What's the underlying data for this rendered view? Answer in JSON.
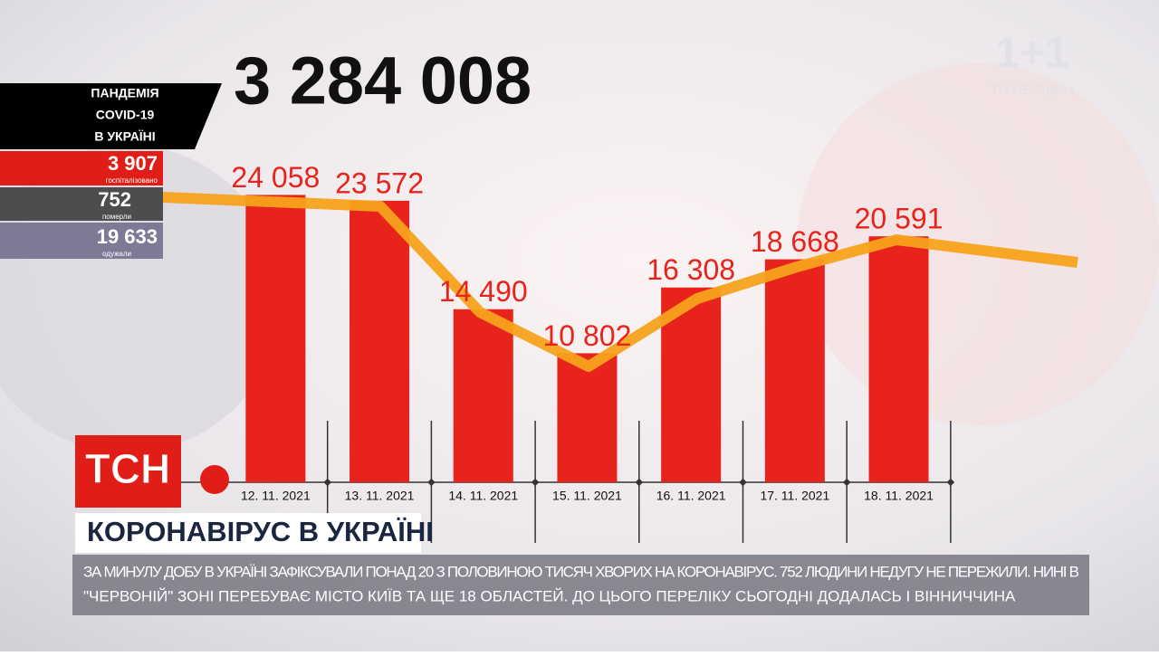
{
  "chart_data": {
    "type": "bar",
    "categories": [
      "12. 11. 2021",
      "13. 11. 2021",
      "14. 11. 2021",
      "15. 11. 2021",
      "16. 11. 2021",
      "17. 11. 2021",
      "18. 11. 2021"
    ],
    "values": [
      24058,
      23572,
      14490,
      10802,
      16308,
      18668,
      20591
    ],
    "value_labels": [
      "24 058",
      "23 572",
      "14 490",
      "10 802",
      "16 308",
      "18 668",
      "20 591"
    ],
    "color": "#e8231b",
    "ylim": [
      0,
      30000
    ]
  },
  "total": "3 284 008",
  "panel": {
    "title": [
      "ПАНДЕМІЯ",
      "COVID-19",
      "В УКРАЇНІ"
    ],
    "stats": [
      {
        "value": "3 907",
        "label": "госпіталізовано"
      },
      {
        "value": "752",
        "label": "померли"
      },
      {
        "value": "19 633",
        "label": "одужали"
      }
    ]
  },
  "channel": {
    "logo": "1+1",
    "slogan": "ТИ НЕ ОДИН"
  },
  "show": "ТСН",
  "headline": "КОРОНАВІРУС В УКРАЇНІ",
  "ticker": [
    "ЗА МИНУЛУ ДОБУ В УКРАЇНІ ЗАФІКСУВАЛИ ПОНАД 20 З ПОЛОВИНОЮ ТИСЯЧ ХВОРИХ НА КОРОНАВІРУС. 752 ЛЮДИНИ НЕДУГУ НЕ ПЕРЕЖИЛИ. НИНІ В",
    "\"ЧЕРВОНІЙ\" ЗОНІ ПЕРЕБУВАЄ МІСТО КИЇВ ТА ЩЕ 18 ОБЛАСТЕЙ. ДО ЦЬОГО ПЕРЕЛІКУ СЬОГОДНІ ДОДАЛАСЬ І ВІННИЧЧИНА"
  ]
}
